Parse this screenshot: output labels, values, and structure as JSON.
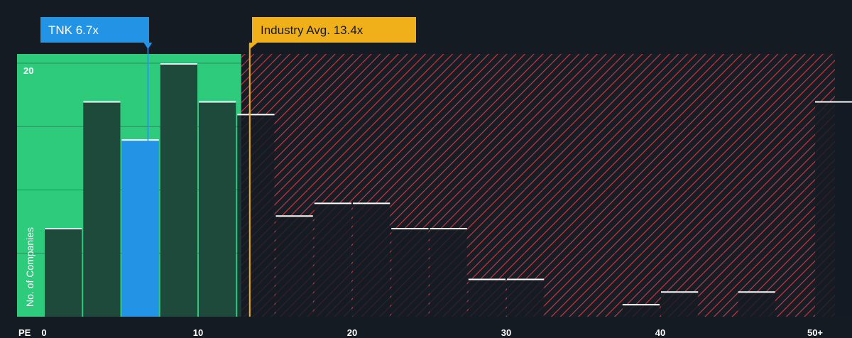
{
  "chart_data": {
    "type": "bar",
    "title": "",
    "xlabel": "PE",
    "ylabel": "No. of Companies",
    "x_ticks": [
      "0",
      "10",
      "20",
      "30",
      "40",
      "50+"
    ],
    "y_ticks": [
      "20"
    ],
    "bin_width": 2.5,
    "bin_starts": [
      0,
      2.5,
      5,
      7.5,
      10,
      12.5,
      15,
      17.5,
      20,
      22.5,
      25,
      27.5,
      30,
      32.5,
      35,
      37.5,
      40,
      42.5,
      45,
      47.5,
      50
    ],
    "values": [
      7,
      17,
      14,
      20,
      17,
      16,
      8,
      9,
      9,
      7,
      7,
      3,
      3,
      0,
      0,
      1,
      2,
      0,
      2,
      0,
      17
    ],
    "highlight_bin": 2,
    "ylim": [
      0,
      21
    ],
    "company": {
      "label": "TNK 6.7x",
      "value": 6.7,
      "color": "#2394e5"
    },
    "industry_avg": {
      "label": "Industry Avg. 13.4x",
      "value": 13.4,
      "color": "#f0b019"
    },
    "zones": {
      "undervalued_color": "#2fcb7c",
      "overvalued_color": "#e0444c"
    },
    "colors": {
      "background": "#151b23",
      "bar_fill": "#1e4a3b",
      "bar_top": "#ffffff",
      "grid": "#2a323c"
    }
  }
}
